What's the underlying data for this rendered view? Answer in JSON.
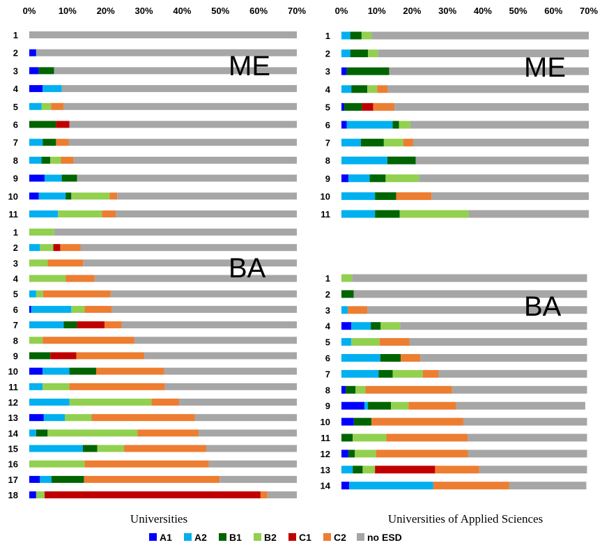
{
  "legend": {
    "labels": [
      "A1",
      "A2",
      "B1",
      "B2",
      "C1",
      "C2",
      "no ESD"
    ],
    "colors": [
      "#0000ff",
      "#00b0f0",
      "#006400",
      "#92d050",
      "#c00000",
      "#ed7d31",
      "#a6a6a6"
    ]
  },
  "chart_data": [
    {
      "type": "bar",
      "orientation": "horizontal",
      "stacked": true,
      "title": "Universities",
      "xlim": [
        0,
        70
      ],
      "xticks": [
        "0%",
        "10%",
        "20%",
        "30%",
        "40%",
        "50%",
        "60%",
        "70%"
      ],
      "groups": [
        {
          "label": "ME",
          "categories": [
            "1",
            "2",
            "3",
            "4",
            "5",
            "6",
            "7",
            "8",
            "9",
            "10",
            "11"
          ],
          "series": [
            {
              "name": "A1",
              "values": [
                0,
                1.8,
                2.5,
                3.5,
                0,
                0,
                0,
                0,
                4,
                2.5,
                0
              ]
            },
            {
              "name": "A2",
              "values": [
                0,
                0,
                0,
                5,
                3.2,
                0,
                3.5,
                3.2,
                4.5,
                7,
                7.5
              ]
            },
            {
              "name": "B1",
              "values": [
                0,
                0,
                4,
                0,
                0,
                7,
                3.5,
                2.3,
                4,
                1.5,
                0
              ]
            },
            {
              "name": "B2",
              "values": [
                0,
                0,
                0,
                0,
                2.5,
                0,
                0,
                2.8,
                0,
                10,
                11.5
              ]
            },
            {
              "name": "C1",
              "values": [
                0,
                0,
                0,
                0,
                0,
                3.5,
                0,
                0,
                0,
                0,
                0
              ]
            },
            {
              "name": "C2",
              "values": [
                0,
                0,
                0,
                0,
                3.3,
                0,
                3.3,
                3.3,
                0,
                2,
                3.6
              ]
            },
            {
              "name": "no ESD",
              "values": [
                70,
                68.2,
                63.5,
                61.5,
                61,
                59.5,
                59.7,
                58.4,
                57.5,
                47,
                47.4
              ]
            }
          ]
        },
        {
          "label": "BA",
          "categories": [
            "1",
            "2",
            "3",
            "4",
            "5",
            "6",
            "7",
            "8",
            "9",
            "10",
            "11",
            "12",
            "13",
            "14",
            "15",
            "16",
            "17",
            "18"
          ],
          "series": [
            {
              "name": "A1",
              "values": [
                0,
                0,
                0,
                0,
                0,
                0.5,
                0,
                0,
                0,
                3.5,
                0,
                0,
                3.8,
                0,
                0,
                0,
                2.8,
                1.8
              ]
            },
            {
              "name": "A2",
              "values": [
                0,
                2.8,
                0,
                0,
                1.8,
                10.5,
                9,
                0,
                0,
                7,
                3.5,
                10.5,
                5.5,
                1.8,
                14,
                0,
                3,
                0
              ]
            },
            {
              "name": "B1",
              "values": [
                0,
                0,
                0,
                0,
                0,
                0,
                3.5,
                0,
                5.5,
                7,
                0,
                0,
                0,
                3,
                3.8,
                0,
                8.5,
                0
              ]
            },
            {
              "name": "B2",
              "values": [
                6.5,
                3.5,
                4.8,
                9.5,
                1.8,
                3.5,
                0,
                3.5,
                0,
                0,
                7,
                21.5,
                7,
                23.5,
                7,
                14.5,
                0,
                2.2
              ]
            },
            {
              "name": "C1",
              "values": [
                0,
                1.8,
                0,
                0,
                0,
                0,
                7.2,
                0,
                6.8,
                0,
                0,
                0,
                0,
                0,
                0,
                0,
                0,
                56.5
              ]
            },
            {
              "name": "C2",
              "values": [
                0,
                5.3,
                9.3,
                7.6,
                17.7,
                7,
                4.5,
                24,
                17.8,
                17.8,
                25,
                7.2,
                27,
                16,
                21.5,
                32.5,
                35.5,
                1.8
              ]
            },
            {
              "name": "no ESD",
              "values": [
                63.5,
                56.6,
                55.9,
                52.9,
                48.7,
                48.5,
                45.8,
                42.5,
                39.9,
                34.7,
                34.5,
                30.8,
                26.7,
                25.7,
                23.7,
                23,
                20.2,
                7.7
              ]
            }
          ]
        }
      ]
    },
    {
      "type": "bar",
      "orientation": "horizontal",
      "stacked": true,
      "title": "Universities of Applied Sciences",
      "xlim": [
        0,
        70
      ],
      "xticks": [
        "0%",
        "10%",
        "20%",
        "30%",
        "40%",
        "50%",
        "60%",
        "70%"
      ],
      "groups": [
        {
          "label": "ME",
          "categories": [
            "1",
            "2",
            "3",
            "4",
            "5",
            "6",
            "7",
            "8",
            "9",
            "10",
            "11"
          ],
          "series": [
            {
              "name": "A1",
              "values": [
                0,
                0,
                1.5,
                0,
                0.8,
                1.5,
                0,
                0,
                2,
                0,
                0
              ]
            },
            {
              "name": "A2",
              "values": [
                2.5,
                2.5,
                0,
                2.8,
                0,
                13,
                5.5,
                13,
                6,
                9.5,
                9.5
              ]
            },
            {
              "name": "B1",
              "values": [
                3.2,
                5,
                12,
                4.5,
                5,
                1.8,
                6.5,
                8,
                4.5,
                6,
                7
              ]
            },
            {
              "name": "B2",
              "values": [
                2.8,
                2.8,
                0,
                2.8,
                0,
                3.2,
                5.5,
                0,
                9.5,
                0,
                19.5
              ]
            },
            {
              "name": "C1",
              "values": [
                0,
                0,
                0,
                0,
                3.2,
                0,
                0,
                0,
                0,
                0,
                0
              ]
            },
            {
              "name": "C2",
              "values": [
                0,
                0,
                0,
                3,
                6,
                0,
                2.8,
                0,
                0,
                10,
                0
              ]
            },
            {
              "name": "no ESD",
              "values": [
                61.5,
                59.7,
                56.5,
                56.9,
                55,
                50.5,
                49.7,
                49,
                48,
                44.5,
                34
              ]
            }
          ]
        },
        {
          "label": "BA",
          "categories": [
            "1",
            "2",
            "3",
            "4",
            "5",
            "6",
            "7",
            "8",
            "9",
            "10",
            "11",
            "12",
            "13",
            "14"
          ],
          "series": [
            {
              "name": "A1",
              "values": [
                0,
                0,
                0,
                2.8,
                0,
                0,
                0,
                1.2,
                6.5,
                3.5,
                0,
                2,
                0,
                2.2
              ]
            },
            {
              "name": "A2",
              "values": [
                0,
                0,
                1.8,
                5.5,
                2.8,
                11,
                10.5,
                0,
                1,
                0,
                0,
                0,
                3.2,
                23.8
              ]
            },
            {
              "name": "B1",
              "values": [
                0,
                3.5,
                0,
                2.8,
                0,
                5.8,
                4,
                2.8,
                6.5,
                5,
                3.2,
                1.8,
                2.8,
                0
              ]
            },
            {
              "name": "B2",
              "values": [
                3,
                0,
                0,
                5.5,
                8,
                0,
                8.5,
                2.8,
                5,
                0,
                9.5,
                6,
                3.5,
                0
              ]
            },
            {
              "name": "C1",
              "values": [
                0,
                0,
                0,
                0,
                0,
                0,
                0,
                0,
                0,
                0,
                0,
                0,
                17,
                0
              ]
            },
            {
              "name": "C2",
              "values": [
                0,
                0,
                5.5,
                0,
                8.5,
                5.5,
                4.5,
                24.5,
                13.5,
                26,
                23,
                26,
                12.5,
                21.5
              ]
            },
            {
              "name": "no ESD",
              "values": [
                66.5,
                66,
                62.2,
                52.9,
                50.2,
                47.2,
                42,
                38.2,
                36.5,
                35,
                33.8,
                33.7,
                30.5,
                21.8
              ]
            }
          ]
        }
      ]
    }
  ]
}
